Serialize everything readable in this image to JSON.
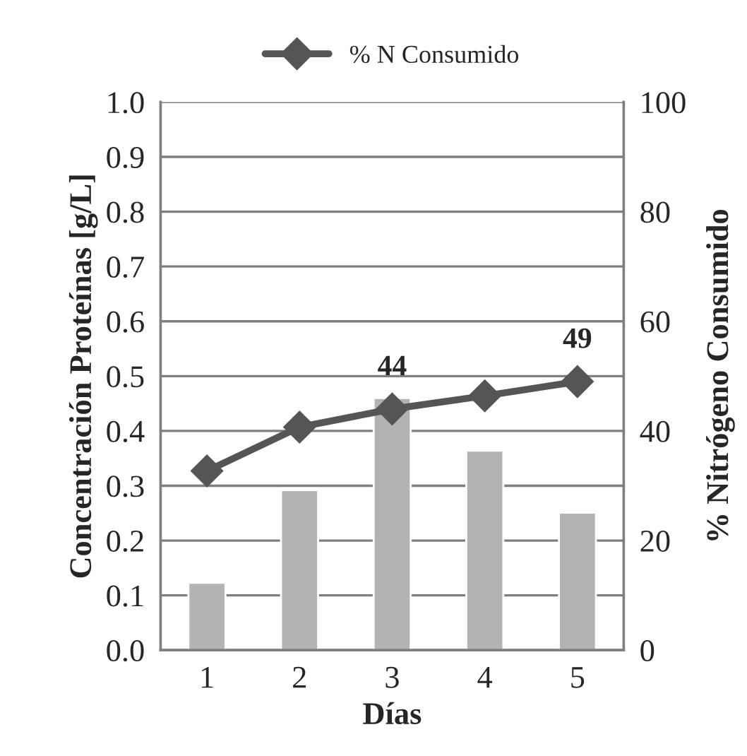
{
  "chart_data": {
    "type": "bar",
    "categories": [
      "1",
      "2",
      "3",
      "4",
      "5"
    ],
    "xlabel": "Días",
    "ylabel": "Concentración Proteínas [g/L]",
    "y2label": "% Nitrógeno Consumido",
    "series": [
      {
        "color": "#b3b3b3",
        "values": [
          0.123,
          0.292,
          0.46,
          0.364,
          0.251
        ]
      },
      {
        "type": "line",
        "axis": "y2",
        "name": "% N Consumido",
        "color": "#555555",
        "marker": "diamond",
        "values": [
          32.7,
          40.7,
          44,
          46.4,
          49
        ],
        "value_labels": [
          null,
          null,
          "44",
          null,
          "49"
        ]
      }
    ],
    "ylim": [
      0,
      1
    ],
    "yticks": [
      {
        "value": 0,
        "label": "0.0"
      },
      {
        "value": 0.1,
        "label": "0.1"
      },
      {
        "value": 0.2,
        "label": "0.2"
      },
      {
        "value": 0.3,
        "label": "0.3"
      },
      {
        "value": 0.4,
        "label": "0.4"
      },
      {
        "value": 0.5,
        "label": "0.5"
      },
      {
        "value": 0.6,
        "label": "0.6"
      },
      {
        "value": 0.7,
        "label": "0.7"
      },
      {
        "value": 0.8,
        "label": "0.8"
      },
      {
        "value": 0.9,
        "label": "0.9"
      },
      {
        "value": 1,
        "label": "1.0"
      }
    ],
    "y2lim": [
      0,
      100
    ],
    "y2ticks": [
      0,
      20,
      40,
      60,
      80,
      100
    ],
    "grid": "y",
    "legend": "top"
  }
}
